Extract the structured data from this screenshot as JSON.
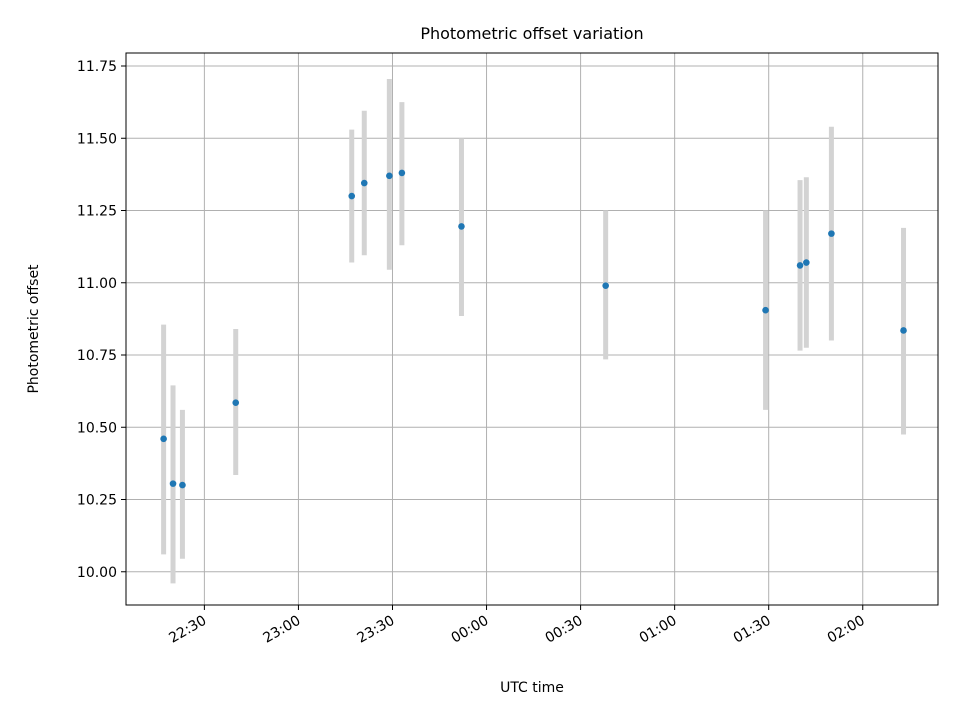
{
  "chart_data": {
    "type": "scatter",
    "title": "Photometric offset variation",
    "xlabel": "UTC time",
    "ylabel": "Photometric offset",
    "grid": true,
    "x_ticks": [
      "22:30",
      "23:00",
      "23:30",
      "00:00",
      "00:30",
      "01:00",
      "01:30",
      "02:00"
    ],
    "y_ticks": [
      "10.00",
      "10.25",
      "10.50",
      "10.75",
      "11.00",
      "11.25",
      "11.50",
      "11.75"
    ],
    "ylim": [
      9.885,
      11.795
    ],
    "xlim": [
      "22:05",
      "02:24"
    ],
    "points": [
      {
        "x": "22:17",
        "y": 10.46,
        "err_low": 10.06,
        "err_high": 10.855
      },
      {
        "x": "22:20",
        "y": 10.305,
        "err_low": 9.96,
        "err_high": 10.645
      },
      {
        "x": "22:23",
        "y": 10.3,
        "err_low": 10.045,
        "err_high": 10.56
      },
      {
        "x": "22:40",
        "y": 10.585,
        "err_low": 10.335,
        "err_high": 10.84
      },
      {
        "x": "23:17",
        "y": 11.3,
        "err_low": 11.07,
        "err_high": 11.53
      },
      {
        "x": "23:21",
        "y": 11.345,
        "err_low": 11.095,
        "err_high": 11.595
      },
      {
        "x": "23:29",
        "y": 11.37,
        "err_low": 11.045,
        "err_high": 11.705
      },
      {
        "x": "23:33",
        "y": 11.38,
        "err_low": 11.13,
        "err_high": 11.625
      },
      {
        "x": "23:52",
        "y": 11.195,
        "err_low": 10.885,
        "err_high": 11.5
      },
      {
        "x": "00:38",
        "y": 10.99,
        "err_low": 10.735,
        "err_high": 11.25
      },
      {
        "x": "01:29",
        "y": 10.905,
        "err_low": 10.56,
        "err_high": 11.25
      },
      {
        "x": "01:40",
        "y": 11.06,
        "err_low": 10.765,
        "err_high": 11.355
      },
      {
        "x": "01:42",
        "y": 11.07,
        "err_low": 10.775,
        "err_high": 11.365
      },
      {
        "x": "01:50",
        "y": 11.17,
        "err_low": 10.8,
        "err_high": 11.54
      },
      {
        "x": "02:13",
        "y": 10.835,
        "err_low": 10.475,
        "err_high": 11.19
      }
    ],
    "colors": {
      "point": "#1f77b4",
      "errorbar": "#d3d3d3",
      "grid": "#b0b0b0",
      "axes": "#000000"
    }
  }
}
